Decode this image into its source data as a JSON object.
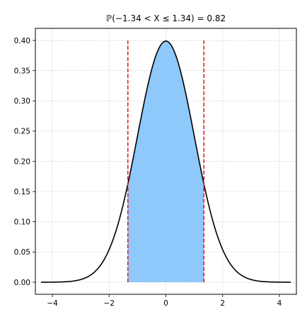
{
  "chart_data": {
    "type": "area",
    "title": "ℙ(−1.34 < X ≤ 1.34) = 0.82",
    "distribution": "standard normal",
    "xlim": [
      -4.6,
      4.6
    ],
    "ylim": [
      -0.02,
      0.42
    ],
    "x_ticks": [
      -4,
      -2,
      0,
      2,
      4
    ],
    "x_tick_labels": [
      "−4",
      "−2",
      "0",
      "2",
      "4"
    ],
    "y_ticks": [
      0.0,
      0.05,
      0.1,
      0.15,
      0.2,
      0.25,
      0.3,
      0.35,
      0.4
    ],
    "y_tick_labels": [
      "0.00",
      "0.05",
      "0.10",
      "0.15",
      "0.20",
      "0.25",
      "0.30",
      "0.35",
      "0.40"
    ],
    "curve_range": [
      -4.4,
      4.4
    ],
    "shaded_interval": [
      -1.34,
      1.34
    ],
    "vertical_lines": [
      {
        "x": -1.34,
        "y_range": [
          0,
          0.4
        ]
      },
      {
        "x": 1.34,
        "y_range": [
          0,
          0.4
        ]
      }
    ],
    "probability": 0.82,
    "grid": true,
    "colors": {
      "curve": "#000000",
      "fill": "#8fc8fa",
      "vertical_lines": "#e02020",
      "grid": "#c8c8c8"
    }
  }
}
